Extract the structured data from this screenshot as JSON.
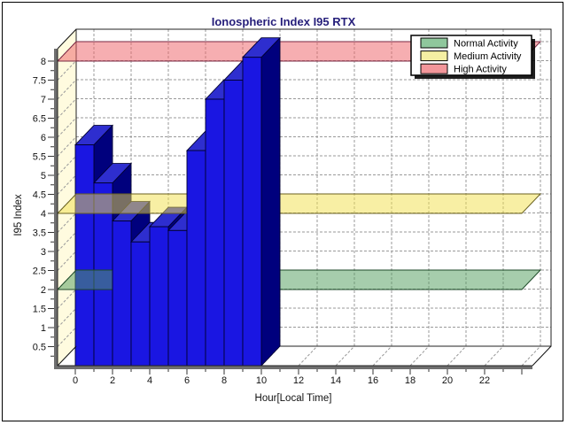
{
  "window": {
    "background": "#ffffff",
    "border_color": "#000000"
  },
  "chart_data": {
    "type": "bar",
    "projection": "3d",
    "title": "Ionospheric Index I95 RTX",
    "xlabel": "Hour[Local Time]",
    "ylabel": "I95 Index",
    "x": [
      0,
      1,
      2,
      3,
      4,
      5,
      6,
      7,
      8,
      9
    ],
    "values": [
      5.8,
      4.8,
      3.8,
      3.25,
      3.65,
      3.55,
      5.65,
      7.0,
      7.5,
      8.1
    ],
    "xlim": [
      0,
      24
    ],
    "ylim": [
      0,
      8.5
    ],
    "x_tick_labels": [
      "0",
      "2",
      "4",
      "6",
      "8",
      "10",
      "12",
      "14",
      "16",
      "18",
      "20",
      "22"
    ],
    "x_minor_step": 1,
    "y_tick_labels": [
      "0.5",
      "1",
      "1.5",
      "2",
      "2.5",
      "3",
      "3.5",
      "4",
      "4.5",
      "5",
      "5.5",
      "6",
      "6.5",
      "7",
      "7.5",
      "8"
    ],
    "y_minor_step": 0.25,
    "grid": "dashed",
    "legend_position": "top-right",
    "bands": [
      {
        "label": "Normal Activity",
        "value": 2,
        "fill": "rgba(84,160,95,0.52)",
        "edge": "#1d4a28",
        "swatch": "#8fc79c"
      },
      {
        "label": "Medium Activity",
        "value": 4,
        "fill": "rgba(242,224,74,0.5)",
        "edge": "#6b6220",
        "swatch": "#f5efa3"
      },
      {
        "label": "High Activity",
        "value": 8,
        "fill": "rgba(238,100,106,0.52)",
        "edge": "#7a2742",
        "swatch": "#f2969a"
      }
    ],
    "colors": {
      "title": "#251e7a",
      "wall": "#fffbdf",
      "grid": "#9a9a9a",
      "bar_front": "#1a16e2",
      "bar_top": "#2e2ecf",
      "bar_side": "#00007d",
      "bar_outline": "#000030",
      "axis_thick": "#6f6f6f",
      "axis_thin": "#222222",
      "text": "#111111"
    }
  }
}
